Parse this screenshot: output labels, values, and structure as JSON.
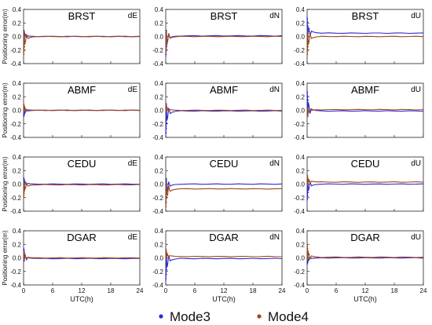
{
  "figure": {
    "ylabel": "Positioning error(m)",
    "xlabel": "UTC(h)"
  },
  "legend": [
    {
      "name": "Mode3",
      "color": "#2b2bd6"
    },
    {
      "name": "Mode4",
      "color": "#a0461a"
    }
  ],
  "chart_data": {
    "type": "line",
    "x_range": [
      0,
      24
    ],
    "y_range": [
      -0.4,
      0.4
    ],
    "x_ticks": [
      0,
      6,
      12,
      18,
      24
    ],
    "x_tick_labels": [
      "0",
      "6",
      "12",
      "18",
      "24"
    ],
    "y_ticks": [
      -0.4,
      -0.2,
      0.0,
      0.2,
      0.4
    ],
    "y_tick_labels": [
      "-0.4",
      "-0.2",
      "0.0",
      "0.2",
      "0.4"
    ],
    "ylabel": "Positioning error(m)",
    "xlabel": "UTC(h)",
    "grid": false,
    "legend_position": "bottom",
    "series_names": [
      "Mode3",
      "Mode4"
    ],
    "rows": [
      "BRST",
      "ABMF",
      "CEDU",
      "DGAR"
    ],
    "columns": [
      "dE",
      "dN",
      "dU"
    ],
    "panels": [
      {
        "station": "BRST",
        "component": "dE",
        "series": [
          {
            "name": "Mode3",
            "initial": 0.1,
            "steady": 0.0
          },
          {
            "name": "Mode4",
            "initial": -0.3,
            "steady": 0.0
          }
        ]
      },
      {
        "station": "BRST",
        "component": "dN",
        "series": [
          {
            "name": "Mode3",
            "initial": -0.3,
            "steady": 0.01
          },
          {
            "name": "Mode4",
            "initial": -0.25,
            "steady": 0.0
          }
        ]
      },
      {
        "station": "BRST",
        "component": "dU",
        "series": [
          {
            "name": "Mode3",
            "initial": 0.3,
            "steady": 0.05
          },
          {
            "name": "Mode4",
            "initial": -0.3,
            "steady": 0.0
          }
        ]
      },
      {
        "station": "ABMF",
        "component": "dE",
        "series": [
          {
            "name": "Mode3",
            "initial": -0.1,
            "steady": 0.0
          },
          {
            "name": "Mode4",
            "initial": 0.1,
            "steady": 0.0
          }
        ]
      },
      {
        "station": "ABMF",
        "component": "dN",
        "series": [
          {
            "name": "Mode3",
            "initial": -0.38,
            "steady": -0.01
          },
          {
            "name": "Mode4",
            "initial": 0.1,
            "steady": 0.0
          }
        ]
      },
      {
        "station": "ABMF",
        "component": "dU",
        "series": [
          {
            "name": "Mode3",
            "initial": 0.3,
            "steady": -0.01
          },
          {
            "name": "Mode4",
            "initial": -0.1,
            "steady": 0.01
          }
        ]
      },
      {
        "station": "CEDU",
        "component": "dE",
        "series": [
          {
            "name": "Mode3",
            "initial": 0.1,
            "steady": 0.0
          },
          {
            "name": "Mode4",
            "initial": -0.2,
            "steady": -0.01
          }
        ]
      },
      {
        "station": "CEDU",
        "component": "dN",
        "series": [
          {
            "name": "Mode3",
            "initial": -0.3,
            "steady": 0.0
          },
          {
            "name": "Mode4",
            "initial": -0.38,
            "steady": -0.07
          }
        ]
      },
      {
        "station": "CEDU",
        "component": "dU",
        "series": [
          {
            "name": "Mode3",
            "initial": -0.25,
            "steady": 0.0
          },
          {
            "name": "Mode4",
            "initial": 0.15,
            "steady": 0.03
          }
        ]
      },
      {
        "station": "DGAR",
        "component": "dE",
        "series": [
          {
            "name": "Mode3",
            "initial": 0.15,
            "steady": -0.01
          },
          {
            "name": "Mode4",
            "initial": 0.1,
            "steady": 0.0
          }
        ]
      },
      {
        "station": "DGAR",
        "component": "dN",
        "series": [
          {
            "name": "Mode3",
            "initial": -0.35,
            "steady": -0.01
          },
          {
            "name": "Mode4",
            "initial": 0.15,
            "steady": 0.02
          }
        ]
      },
      {
        "station": "DGAR",
        "component": "dU",
        "series": [
          {
            "name": "Mode3",
            "initial": -0.1,
            "steady": 0.0
          },
          {
            "name": "Mode4",
            "initial": 0.2,
            "steady": 0.01
          }
        ]
      }
    ]
  }
}
